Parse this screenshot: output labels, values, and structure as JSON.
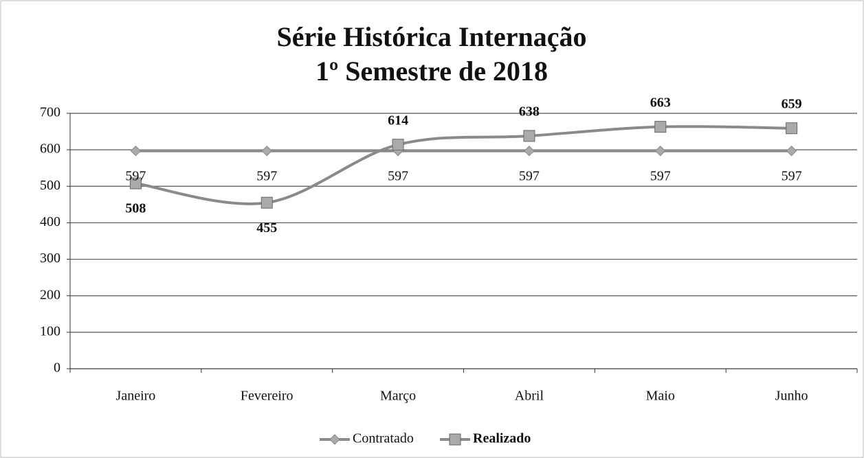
{
  "chart_data": {
    "type": "line",
    "title": "Série Histórica Internação",
    "subtitle": "1º Semestre de 2018",
    "categories": [
      "Janeiro",
      "Fevereiro",
      "Março",
      "Abril",
      "Maio",
      "Junho"
    ],
    "series": [
      {
        "name": "Contratado",
        "color": "#8a8a8a",
        "marker": "diamond",
        "values": [
          597,
          597,
          597,
          597,
          597,
          597
        ]
      },
      {
        "name": "Realizado",
        "color": "#8a8a8a",
        "marker": "square",
        "values": [
          508,
          455,
          614,
          638,
          663,
          659
        ]
      }
    ],
    "ylim": [
      0,
      700
    ],
    "yticks": [
      0,
      100,
      200,
      300,
      400,
      500,
      600,
      700
    ],
    "grid": true,
    "legend": "bottom"
  }
}
